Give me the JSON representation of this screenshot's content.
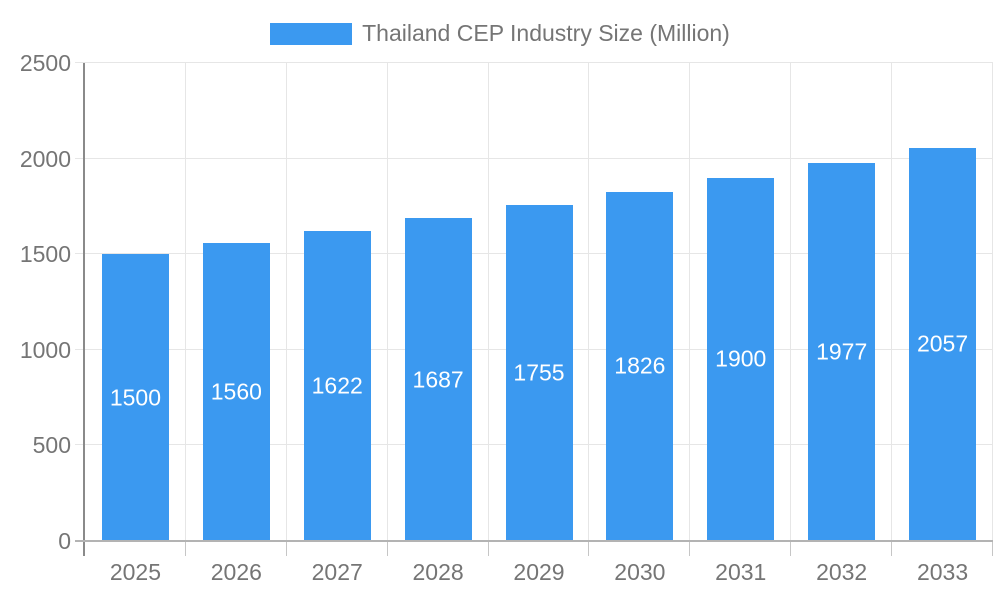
{
  "legend": {
    "label": "Thailand CEP Industry Size (Million)"
  },
  "chart_data": {
    "type": "bar",
    "title": "Thailand CEP Industry Size (Million)",
    "series_name": "Thailand CEP Industry Size (Million)",
    "categories": [
      "2025",
      "2026",
      "2027",
      "2028",
      "2029",
      "2030",
      "2031",
      "2032",
      "2033"
    ],
    "values": [
      1500,
      1560,
      1622,
      1687,
      1755,
      1826,
      1900,
      1977,
      2057
    ],
    "xlabel": "",
    "ylabel": "",
    "ylim": [
      0,
      2500
    ],
    "yticks": [
      0,
      500,
      1000,
      1500,
      2000,
      2500
    ],
    "grid": true,
    "legend_position": "top",
    "colors": {
      "bar": "#3B99F0",
      "value_label": "#FFFFFF",
      "axis_text": "#757575",
      "gridline": "#E6E6E6",
      "y_axis_line": "#8A8A8A",
      "baseline": "#B3B3B3",
      "tick": "#C6C6C6",
      "background": "#FFFFFF"
    }
  }
}
